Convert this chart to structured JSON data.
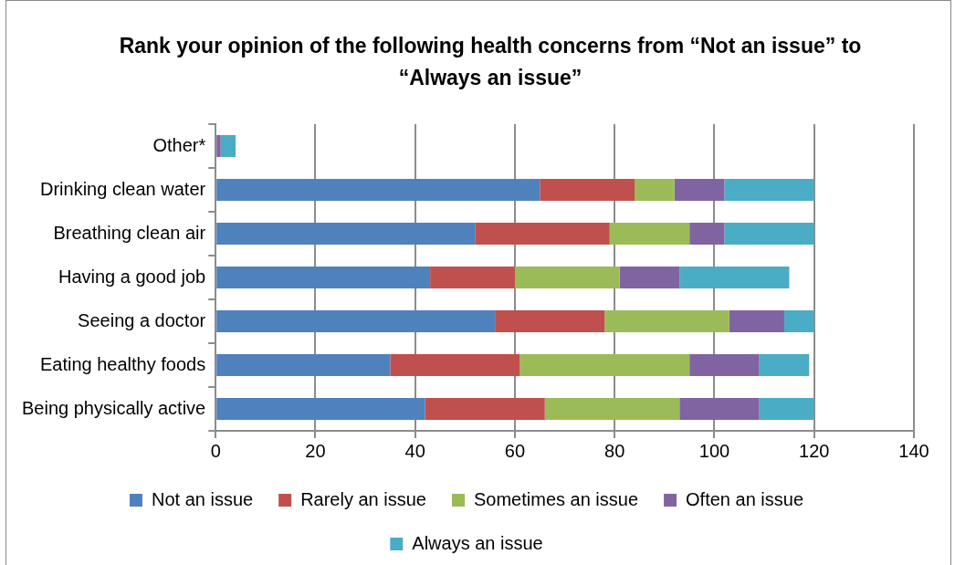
{
  "chart_data": {
    "type": "bar",
    "orientation": "horizontal",
    "stacked": true,
    "title": "Rank your opinion of the following health concerns from “Not an issue” to “Always an issue”",
    "categories": [
      "Other*",
      "Drinking clean water",
      "Breathing clean air",
      "Having a good job",
      "Seeing a doctor",
      "Eating healthy foods",
      "Being physically active"
    ],
    "series": [
      {
        "name": "Not an issue",
        "color": "#4f81bd",
        "values": [
          0,
          65,
          52,
          43,
          56,
          35,
          42
        ]
      },
      {
        "name": "Rarely an issue",
        "color": "#c0504d",
        "values": [
          0,
          19,
          27,
          17,
          22,
          26,
          24
        ]
      },
      {
        "name": "Sometimes an issue",
        "color": "#9bbb59",
        "values": [
          0,
          8,
          16,
          21,
          25,
          34,
          27
        ]
      },
      {
        "name": "Often an issue",
        "color": "#8064a2",
        "values": [
          1,
          10,
          7,
          12,
          11,
          14,
          16
        ]
      },
      {
        "name": "Always an issue",
        "color": "#4bacc6",
        "values": [
          3,
          18,
          18,
          22,
          6,
          10,
          11
        ]
      }
    ],
    "xlim": [
      0,
      140
    ],
    "xticks": [
      0,
      20,
      40,
      60,
      80,
      100,
      120,
      140
    ],
    "grid": "x",
    "legend": "bottom"
  }
}
